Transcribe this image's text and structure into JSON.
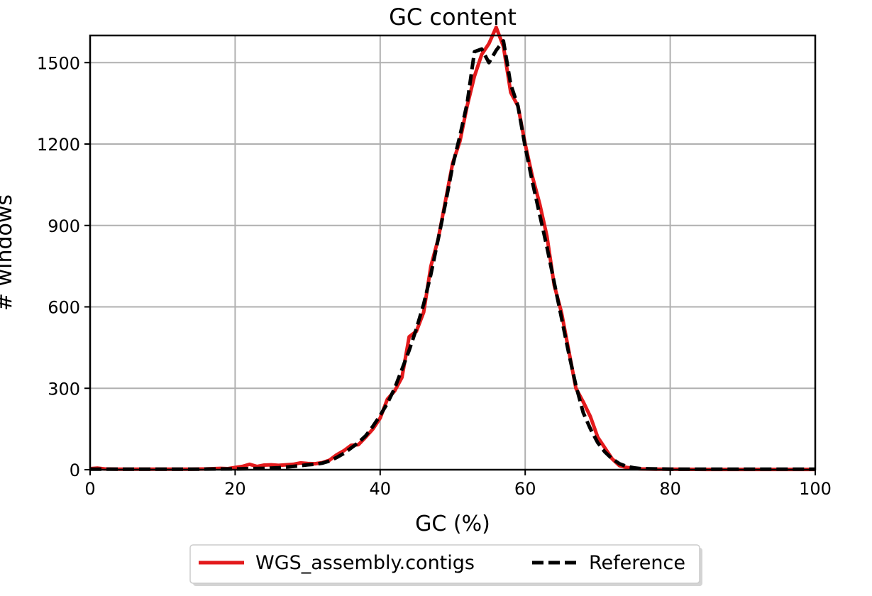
{
  "chart_data": {
    "type": "line",
    "title": "GC content",
    "xlabel": "GC (%)",
    "ylabel": "# windows",
    "xlim": [
      0,
      100
    ],
    "ylim": [
      0,
      1600
    ],
    "xticks": [
      "0",
      "20",
      "40",
      "60",
      "80",
      "100"
    ],
    "yticks": [
      "0",
      "300",
      "600",
      "900",
      "1200",
      "1500"
    ],
    "grid": true,
    "legend_position": "bottom-center",
    "series": [
      {
        "name": "WGS_assembly.contigs",
        "color": "#e31a1c",
        "style": "solid",
        "points": [
          [
            0,
            4
          ],
          [
            1,
            6
          ],
          [
            2,
            3
          ],
          [
            4,
            2
          ],
          [
            6,
            2
          ],
          [
            8,
            2
          ],
          [
            10,
            2
          ],
          [
            12,
            2
          ],
          [
            14,
            2
          ],
          [
            16,
            3
          ],
          [
            18,
            5
          ],
          [
            19,
            4
          ],
          [
            20,
            8
          ],
          [
            21,
            12
          ],
          [
            22,
            20
          ],
          [
            23,
            12
          ],
          [
            24,
            17
          ],
          [
            25,
            18
          ],
          [
            26,
            16
          ],
          [
            27,
            18
          ],
          [
            28,
            20
          ],
          [
            29,
            25
          ],
          [
            30,
            23
          ],
          [
            31,
            22
          ],
          [
            32,
            26
          ],
          [
            33,
            35
          ],
          [
            34,
            55
          ],
          [
            35,
            70
          ],
          [
            36,
            90
          ],
          [
            37,
            92
          ],
          [
            38,
            120
          ],
          [
            39,
            150
          ],
          [
            40,
            190
          ],
          [
            41,
            260
          ],
          [
            42,
            290
          ],
          [
            43,
            340
          ],
          [
            44,
            490
          ],
          [
            45,
            510
          ],
          [
            46,
            580
          ],
          [
            47,
            750
          ],
          [
            48,
            850
          ],
          [
            49,
            990
          ],
          [
            50,
            1130
          ],
          [
            51,
            1210
          ],
          [
            52,
            1340
          ],
          [
            53,
            1450
          ],
          [
            54,
            1530
          ],
          [
            55,
            1570
          ],
          [
            56,
            1630
          ],
          [
            57,
            1560
          ],
          [
            58,
            1390
          ],
          [
            59,
            1340
          ],
          [
            60,
            1200
          ],
          [
            61,
            1080
          ],
          [
            62,
            980
          ],
          [
            63,
            860
          ],
          [
            64,
            680
          ],
          [
            65,
            580
          ],
          [
            66,
            440
          ],
          [
            67,
            300
          ],
          [
            68,
            250
          ],
          [
            69,
            195
          ],
          [
            70,
            120
          ],
          [
            71,
            80
          ],
          [
            72,
            40
          ],
          [
            73,
            15
          ],
          [
            74,
            8
          ],
          [
            75,
            5
          ],
          [
            76,
            3
          ],
          [
            78,
            2
          ],
          [
            80,
            2
          ],
          [
            85,
            1
          ],
          [
            90,
            1
          ],
          [
            95,
            1
          ],
          [
            100,
            1
          ]
        ]
      },
      {
        "name": "Reference",
        "color": "#000000",
        "style": "dashed",
        "points": [
          [
            0,
            2
          ],
          [
            2,
            2
          ],
          [
            5,
            2
          ],
          [
            10,
            2
          ],
          [
            15,
            2
          ],
          [
            20,
            3
          ],
          [
            22,
            4
          ],
          [
            24,
            5
          ],
          [
            26,
            7
          ],
          [
            28,
            12
          ],
          [
            30,
            18
          ],
          [
            31,
            20
          ],
          [
            32,
            24
          ],
          [
            33,
            32
          ],
          [
            34,
            45
          ],
          [
            35,
            60
          ],
          [
            36,
            80
          ],
          [
            37,
            100
          ],
          [
            38,
            125
          ],
          [
            39,
            160
          ],
          [
            40,
            200
          ],
          [
            41,
            245
          ],
          [
            42,
            300
          ],
          [
            43,
            370
          ],
          [
            44,
            440
          ],
          [
            45,
            520
          ],
          [
            46,
            610
          ],
          [
            47,
            720
          ],
          [
            48,
            850
          ],
          [
            49,
            980
          ],
          [
            50,
            1120
          ],
          [
            51,
            1230
          ],
          [
            52,
            1350
          ],
          [
            53,
            1540
          ],
          [
            54,
            1550
          ],
          [
            55,
            1500
          ],
          [
            56,
            1545
          ],
          [
            57,
            1580
          ],
          [
            58,
            1420
          ],
          [
            59,
            1340
          ],
          [
            60,
            1190
          ],
          [
            61,
            1060
          ],
          [
            62,
            940
          ],
          [
            63,
            820
          ],
          [
            64,
            690
          ],
          [
            65,
            560
          ],
          [
            66,
            430
          ],
          [
            67,
            310
          ],
          [
            68,
            210
          ],
          [
            69,
            150
          ],
          [
            70,
            100
          ],
          [
            71,
            65
          ],
          [
            72,
            40
          ],
          [
            73,
            22
          ],
          [
            74,
            12
          ],
          [
            75,
            7
          ],
          [
            76,
            4
          ],
          [
            78,
            3
          ],
          [
            80,
            2
          ],
          [
            85,
            2
          ],
          [
            90,
            2
          ],
          [
            95,
            2
          ],
          [
            100,
            2
          ]
        ]
      }
    ]
  }
}
